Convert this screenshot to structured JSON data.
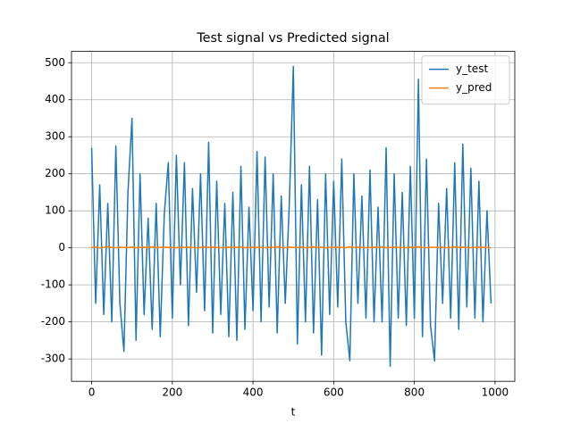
{
  "chart_data": {
    "type": "line",
    "title": "Test signal vs Predicted signal",
    "xlabel": "t",
    "x": [
      0,
      10,
      20,
      30,
      40,
      50,
      60,
      70,
      80,
      90,
      100,
      110,
      120,
      130,
      140,
      150,
      160,
      170,
      180,
      190,
      200,
      210,
      220,
      230,
      240,
      250,
      260,
      270,
      280,
      290,
      300,
      310,
      320,
      330,
      340,
      350,
      360,
      370,
      380,
      390,
      400,
      410,
      420,
      430,
      440,
      450,
      460,
      470,
      480,
      490,
      500,
      510,
      520,
      530,
      540,
      550,
      560,
      570,
      580,
      590,
      600,
      610,
      620,
      630,
      640,
      650,
      660,
      670,
      680,
      690,
      700,
      710,
      720,
      730,
      740,
      750,
      760,
      770,
      780,
      790,
      800,
      810,
      820,
      830,
      840,
      850,
      860,
      870,
      880,
      890,
      900,
      910,
      920,
      930,
      940,
      950,
      960,
      970,
      980,
      990
    ],
    "series": [
      {
        "name": "y_test",
        "color": "#1f77b4",
        "values": [
          270,
          -150,
          170,
          -180,
          120,
          -200,
          275,
          -150,
          -280,
          150,
          350,
          -250,
          200,
          -180,
          80,
          -220,
          120,
          -240,
          90,
          230,
          -190,
          250,
          -100,
          230,
          -210,
          160,
          -120,
          200,
          -170,
          285,
          -230,
          180,
          -180,
          120,
          -240,
          150,
          -250,
          220,
          -220,
          110,
          -170,
          260,
          -200,
          245,
          -160,
          200,
          -230,
          140,
          -150,
          120,
          490,
          -260,
          170,
          -200,
          220,
          -230,
          130,
          -290,
          200,
          -180,
          180,
          -160,
          240,
          -200,
          -305,
          200,
          -150,
          140,
          -190,
          210,
          -200,
          110,
          -200,
          270,
          -320,
          200,
          -190,
          150,
          -210,
          220,
          -190,
          455,
          -240,
          240,
          -210,
          -305,
          120,
          -150,
          160,
          -190,
          230,
          -220,
          280,
          -160,
          215,
          -190,
          180,
          -200,
          100,
          -150
        ]
      },
      {
        "name": "y_pred",
        "color": "#ff7f0e",
        "values": [
          1,
          2,
          0,
          1,
          3,
          1,
          0,
          2,
          1,
          1,
          2,
          0,
          1,
          2,
          1,
          3,
          0,
          1,
          2,
          1,
          1,
          0,
          2,
          1,
          2,
          1,
          0,
          1,
          3,
          1,
          2,
          1,
          0,
          1,
          2,
          1,
          1,
          3,
          0,
          1,
          2,
          1,
          1,
          0,
          2,
          1,
          3,
          1,
          0,
          2,
          1,
          1,
          2,
          0,
          1,
          3,
          1,
          2,
          0,
          1,
          1,
          2,
          1,
          0,
          3,
          1,
          2,
          1,
          0,
          1,
          2,
          1,
          3,
          0,
          1,
          2,
          1,
          1,
          0,
          2,
          1,
          3,
          1,
          0,
          2,
          1,
          1,
          2,
          0,
          1,
          3,
          1,
          2,
          1,
          0,
          1,
          2,
          1,
          1,
          0
        ]
      }
    ],
    "xlim": [
      -49.95,
      1048.95
    ],
    "ylim": [
      -360.5,
      530.5
    ],
    "xticks": [
      0,
      200,
      400,
      600,
      800,
      1000
    ],
    "yticks": [
      -300,
      -200,
      -100,
      0,
      100,
      200,
      300,
      400,
      500
    ],
    "grid": true,
    "legend": "upper right"
  }
}
